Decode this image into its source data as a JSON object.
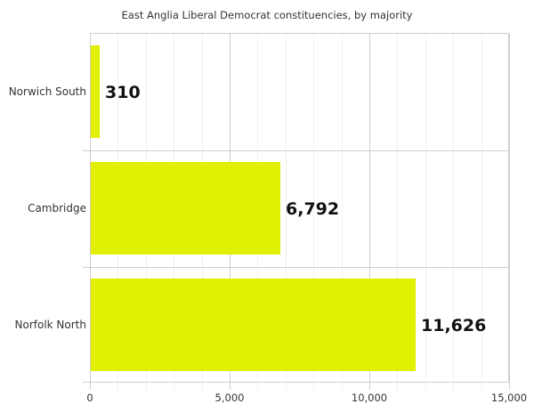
{
  "chart_data": {
    "type": "bar",
    "orientation": "horizontal",
    "title": "East Anglia Liberal Democrat constituencies, by majority",
    "xlabel": "",
    "ylabel": "",
    "categories": [
      "Norwich South",
      "Cambridge",
      "Norfolk North"
    ],
    "values": [
      310,
      6792,
      11626
    ],
    "value_labels": [
      "310",
      "6,792",
      "11,626"
    ],
    "xlim": [
      0,
      15000
    ],
    "x_ticks": [
      0,
      5000,
      10000,
      15000
    ],
    "x_tick_labels": [
      "0",
      "5,000",
      "10,000",
      "15,000"
    ],
    "minor_tick_step": 1000,
    "grid": true,
    "legend": null,
    "bar_color": "#e0f000"
  }
}
